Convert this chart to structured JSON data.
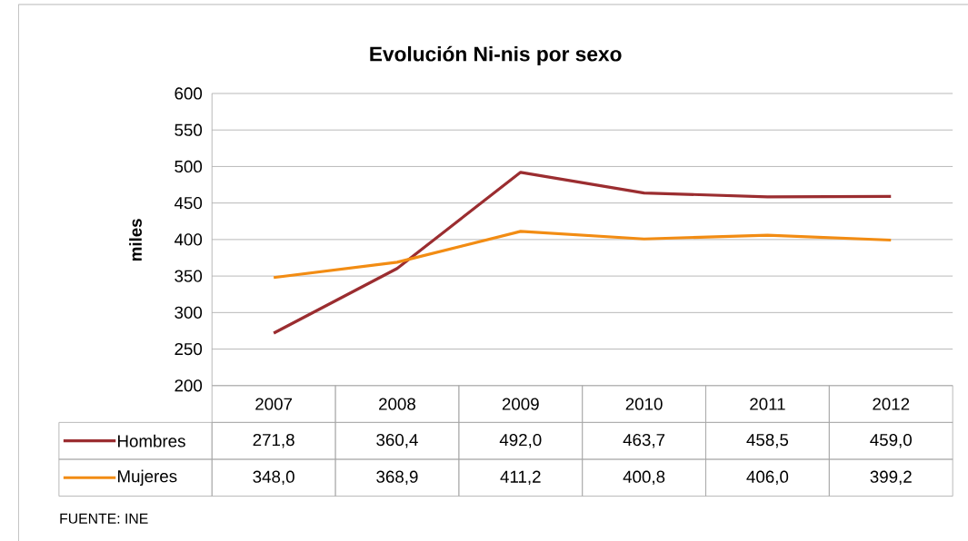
{
  "chart_data": {
    "type": "line",
    "title": "Evolución Ni-nis por sexo",
    "ylabel": "miles",
    "categories": [
      "2007",
      "2008",
      "2009",
      "2010",
      "2011",
      "2012"
    ],
    "series": [
      {
        "name": "Hombres",
        "color": "#9b2d30",
        "values": [
          271.8,
          360.4,
          492.0,
          463.7,
          458.5,
          459.0
        ],
        "value_labels": [
          "271,8",
          "360,4",
          "492,0",
          "463,7",
          "458,5",
          "459,0"
        ]
      },
      {
        "name": "Mujeres",
        "color": "#f28c13",
        "values": [
          348.0,
          368.9,
          411.2,
          400.8,
          406.0,
          399.2
        ],
        "value_labels": [
          "348,0",
          "368,9",
          "411,2",
          "400,8",
          "406,0",
          "399,2"
        ]
      }
    ],
    "ylim": [
      200,
      600
    ],
    "yticks": [
      200,
      250,
      300,
      350,
      400,
      450,
      500,
      550,
      600
    ],
    "grid": "y",
    "legend": "bottom",
    "line_style": "solid",
    "annotations": [
      "FUENTE: INE"
    ]
  }
}
